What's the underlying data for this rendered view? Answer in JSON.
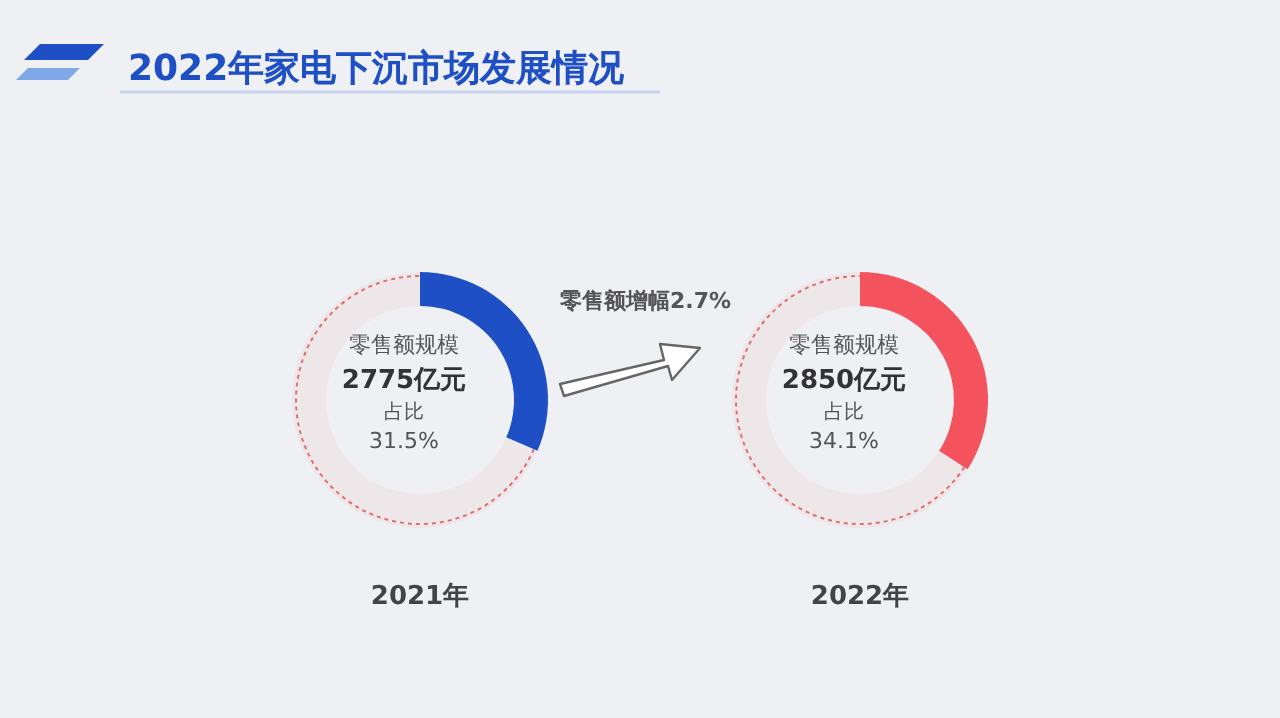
{
  "chart_data": [
    {
      "type": "donut",
      "title": "2022年家电下沉市场发展情况",
      "categories": [
        null,
        null
      ],
      "values": [
        31.5,
        68.5
      ],
      "colors": [
        "#1f4fc4",
        "#e07070"
      ],
      "xlabel": "2021年",
      "annotations": [
        "零售额规模",
        "2775亿元",
        "占比",
        "31.5%"
      ]
    },
    {
      "type": "donut",
      "categories": [
        null,
        null
      ],
      "values": [
        34.1,
        65.9
      ],
      "colors": [
        "#f4525c",
        "#e07070"
      ],
      "xlabel": "2022年",
      "annotations": [
        "零售额规模",
        "2850亿元",
        "占比",
        "34.1%",
        "零售额增幅2.7%"
      ]
    }
  ]
}
